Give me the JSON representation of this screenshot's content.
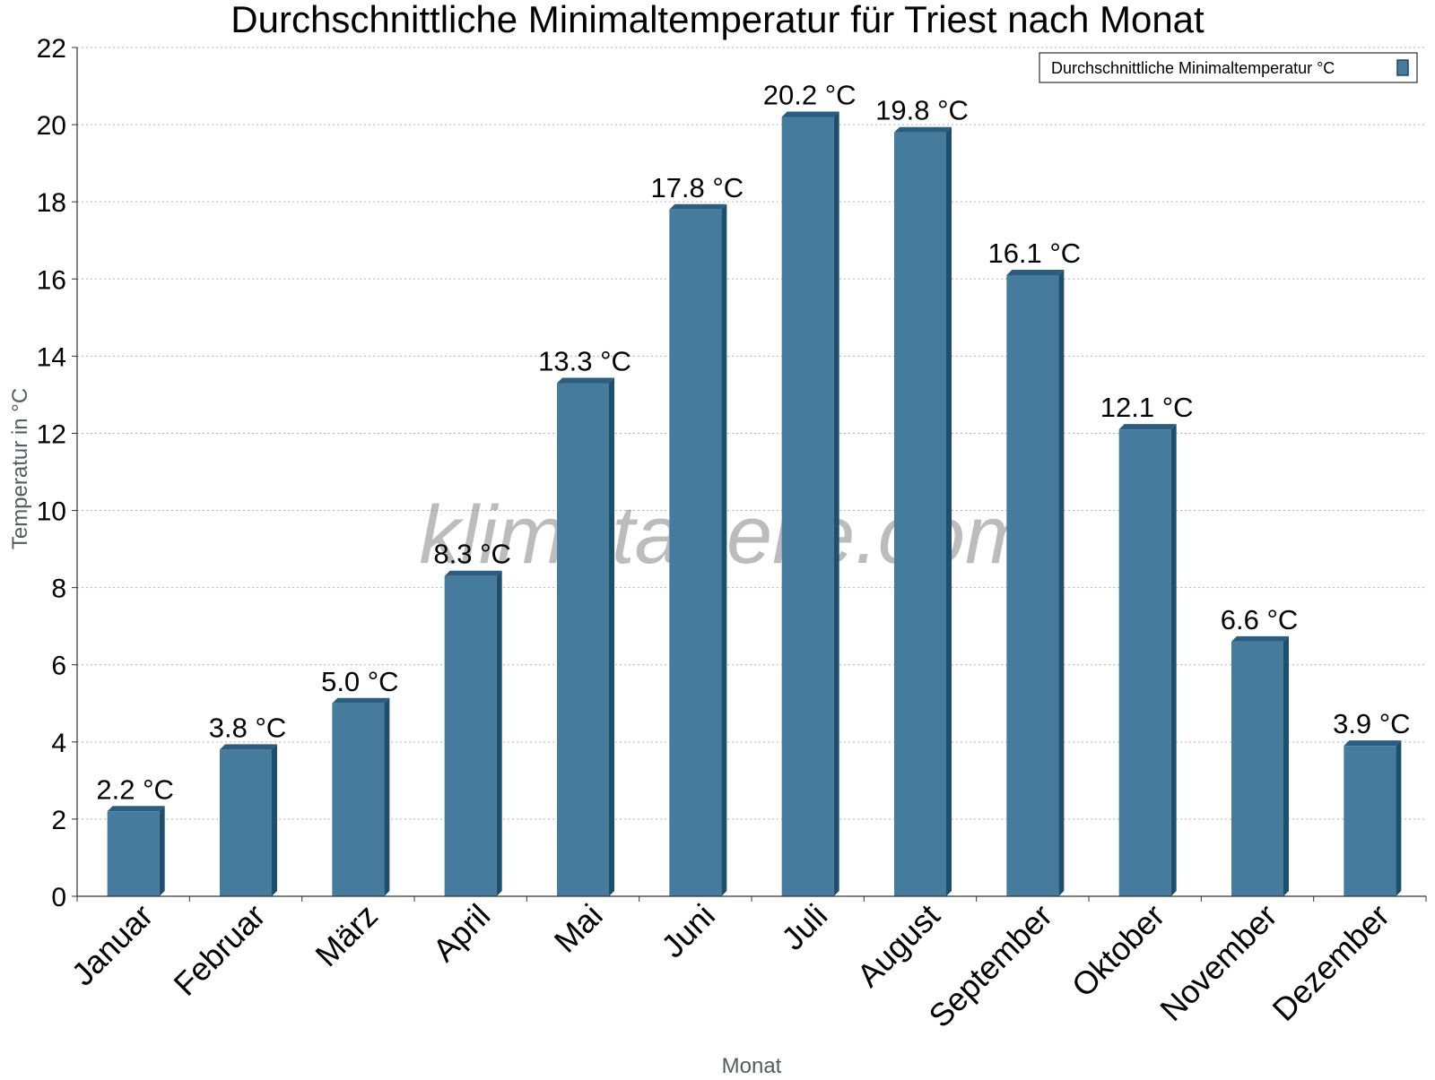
{
  "chart_data": {
    "type": "bar",
    "title": "Durchschnittliche Minimaltemperatur für Triest nach Monat",
    "xlabel": "Monat",
    "ylabel": "Temperatur in °C",
    "categories": [
      "Januar",
      "Februar",
      "März",
      "April",
      "Mai",
      "Juni",
      "Juli",
      "August",
      "September",
      "Oktober",
      "November",
      "Dezember"
    ],
    "series": [
      {
        "name": "Durchschnittliche Minimaltemperatur °C",
        "values": [
          2.2,
          3.8,
          5.0,
          8.3,
          13.3,
          17.8,
          20.2,
          19.8,
          16.1,
          12.1,
          6.6,
          3.9
        ],
        "labels": [
          "2.2 °C",
          "3.8 °C",
          "5.0 °C",
          "8.3 °C",
          "13.3 °C",
          "17.8 °C",
          "20.2 °C",
          "19.8 °C",
          "16.1 °C",
          "12.1 °C",
          "6.6 °C",
          "3.9 °C"
        ],
        "color": "#457b9d"
      }
    ],
    "ylim": [
      0,
      22
    ],
    "yticks": [
      0,
      2,
      4,
      6,
      8,
      10,
      12,
      14,
      16,
      18,
      20,
      22
    ],
    "grid": true,
    "legend": "top-right",
    "watermark": "klimatabelle.com"
  }
}
